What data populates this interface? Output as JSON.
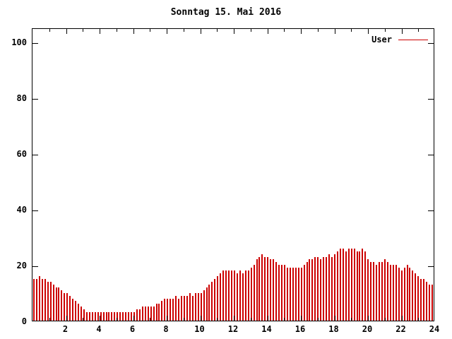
{
  "chart_data": {
    "type": "bar",
    "title": "Sonntag 15. Mai 2016",
    "legend": [
      {
        "name": "User",
        "color": "#cc0000"
      }
    ],
    "bar_color": "#cc0000",
    "xlabel": "",
    "ylabel": "",
    "xlim": [
      0,
      24
    ],
    "ylim": [
      0,
      105
    ],
    "x_unit": "hour-of-day",
    "x_step_minutes": 10,
    "y_ticks": [
      0,
      20,
      40,
      60,
      80,
      100
    ],
    "x_ticks": [
      2,
      4,
      6,
      8,
      10,
      12,
      14,
      16,
      18,
      20,
      22,
      24
    ],
    "grid": false,
    "legend_position": "top-right-inside",
    "values": [
      15,
      15,
      16,
      15,
      15,
      14,
      14,
      13,
      12,
      12,
      11,
      10,
      10,
      9,
      8,
      7,
      6,
      5,
      4,
      3,
      3,
      3,
      3,
      3,
      3,
      3,
      3,
      3,
      3,
      3,
      3,
      3,
      3,
      3,
      3,
      3,
      3,
      4,
      4,
      5,
      5,
      5,
      5,
      5,
      6,
      6,
      7,
      8,
      8,
      8,
      8,
      9,
      8,
      9,
      9,
      9,
      10,
      9,
      10,
      10,
      10,
      11,
      12,
      13,
      14,
      15,
      16,
      17,
      18,
      18,
      18,
      18,
      18,
      17,
      18,
      17,
      18,
      18,
      19,
      20,
      22,
      23,
      24,
      23,
      23,
      22,
      22,
      21,
      20,
      20,
      20,
      19,
      19,
      19,
      19,
      19,
      19,
      20,
      21,
      22,
      22,
      23,
      23,
      22,
      23,
      23,
      24,
      23,
      24,
      25,
      26,
      26,
      25,
      26,
      26,
      26,
      25,
      25,
      26,
      25,
      22,
      21,
      21,
      20,
      21,
      21,
      22,
      21,
      20,
      20,
      20,
      19,
      18,
      19,
      20,
      19,
      18,
      17,
      16,
      15,
      15,
      14,
      13,
      13
    ]
  }
}
